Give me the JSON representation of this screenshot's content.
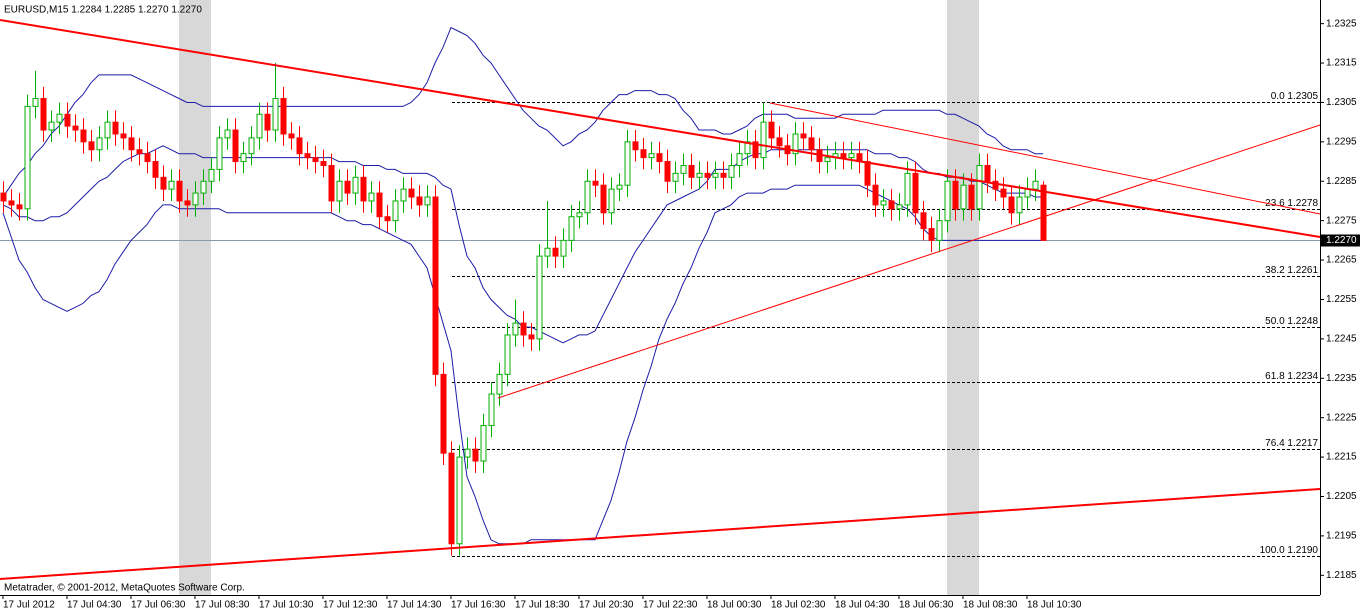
{
  "chart_data": {
    "type": "candlestick",
    "header": "EURUSD,M15 1.2284 1.2285 1.2270 1.2270",
    "footer": "Metatrader, © 2001-2012, MetaQuotes Software Corp.",
    "ylim": [
      1.218,
      1.2331
    ],
    "yticks": [
      1.2325,
      1.2315,
      1.2305,
      1.2295,
      1.2285,
      1.2275,
      1.2265,
      1.2255,
      1.2245,
      1.2235,
      1.2225,
      1.2215,
      1.2205,
      1.2195,
      1.2185
    ],
    "up_color": "#00b000",
    "down_color": "#ff0000",
    "categories": [
      "17 Jul 2012",
      null,
      null,
      null,
      null,
      null,
      null,
      null,
      "17 Jul 04:30",
      null,
      null,
      null,
      null,
      null,
      null,
      null,
      "17 Jul 06:30",
      null,
      null,
      null,
      null,
      null,
      null,
      null,
      "17 Jul 08:30",
      null,
      null,
      null,
      null,
      null,
      null,
      null,
      "17 Jul 10:30",
      null,
      null,
      null,
      null,
      null,
      null,
      null,
      "17 Jul 12:30",
      null,
      null,
      null,
      null,
      null,
      null,
      null,
      "17 Jul 14:30",
      null,
      null,
      null,
      null,
      null,
      null,
      null,
      "17 Jul 16:30",
      null,
      null,
      null,
      null,
      null,
      null,
      null,
      "17 Jul 18:30",
      null,
      null,
      null,
      null,
      null,
      null,
      null,
      "17 Jul 20:30",
      null,
      null,
      null,
      null,
      null,
      null,
      null,
      "17 Jul 22:30",
      null,
      null,
      null,
      null,
      null,
      null,
      null,
      "18 Jul 00:30",
      null,
      null,
      null,
      null,
      null,
      null,
      null,
      "18 Jul 02:30",
      null,
      null,
      null,
      null,
      null,
      null,
      null,
      "18 Jul 04:30",
      null,
      null,
      null,
      null,
      null,
      null,
      null,
      "18 Jul 06:30",
      null,
      null,
      null,
      null,
      null,
      null,
      null,
      "18 Jul 08:30",
      null,
      null,
      null,
      null,
      null,
      null,
      null,
      "18 Jul 10:30",
      null,
      null
    ],
    "open": [
      1.2282,
      1.228,
      1.2279,
      1.2278,
      1.2304,
      1.2306,
      1.2298,
      1.23,
      1.2302,
      1.2299,
      1.2298,
      1.2295,
      1.2293,
      1.2296,
      1.23,
      1.2297,
      1.2296,
      1.2293,
      1.2292,
      1.229,
      1.2286,
      1.2283,
      1.2285,
      1.228,
      1.2279,
      1.2282,
      1.2285,
      1.2288,
      1.2296,
      1.2298,
      1.229,
      1.2292,
      1.2296,
      1.2302,
      1.2298,
      1.2306,
      1.2297,
      1.2296,
      1.2292,
      1.2291,
      1.229,
      1.2289,
      1.228,
      1.2285,
      1.2282,
      1.2286,
      1.228,
      1.2282,
      1.2276,
      1.2275,
      1.228,
      1.2283,
      1.2281,
      1.2279,
      1.2281,
      1.2236,
      1.2216,
      1.2193,
      1.2215,
      1.2217,
      1.2214,
      1.2223,
      1.2231,
      1.2236,
      1.2246,
      1.2249,
      1.2246,
      1.2245,
      1.2266,
      1.2268,
      1.2266,
      1.227,
      1.2276,
      1.2277,
      1.2285,
      1.2284,
      1.2277,
      1.2283,
      1.2284,
      1.2295,
      1.2293,
      1.2291,
      1.2292,
      1.229,
      1.2285,
      1.2287,
      1.2289,
      1.2286,
      1.2287,
      1.2286,
      1.2287,
      1.2286,
      1.2289,
      1.2292,
      1.2295,
      1.2291,
      1.23,
      1.2296,
      1.2294,
      1.2292,
      1.2297,
      1.2296,
      1.2293,
      1.229,
      1.2291,
      1.2292,
      1.2291,
      1.2292,
      1.229,
      1.2284,
      1.2279,
      1.228,
      1.2278,
      1.2279,
      1.2287,
      1.2277,
      1.2273,
      1.227,
      1.2275,
      1.2285,
      1.2278,
      1.2284,
      1.2278,
      1.2289,
      1.2285,
      1.2283,
      1.2281,
      1.2277,
      1.2281,
      1.2283,
      1.2284
    ],
    "high": [
      1.2285,
      1.2283,
      1.2282,
      1.2307,
      1.2313,
      1.2309,
      1.2303,
      1.2305,
      1.2305,
      1.2302,
      1.2301,
      1.2298,
      1.2299,
      1.2303,
      1.2303,
      1.23,
      1.2299,
      1.2296,
      1.2295,
      1.2293,
      1.2289,
      1.2288,
      1.2288,
      1.2283,
      1.2285,
      1.2288,
      1.2291,
      1.2299,
      1.2301,
      1.2301,
      1.2295,
      1.2299,
      1.2305,
      1.2305,
      1.2315,
      1.2309,
      1.23,
      1.2299,
      1.2295,
      1.2294,
      1.2293,
      1.2292,
      1.2288,
      1.2288,
      1.2289,
      1.2289,
      1.2285,
      1.2285,
      1.2279,
      1.2283,
      1.2286,
      1.2286,
      1.2284,
      1.2284,
      1.2284,
      1.2239,
      1.2219,
      1.2218,
      1.222,
      1.222,
      1.2226,
      1.2234,
      1.2239,
      1.2249,
      1.2255,
      1.2252,
      1.2249,
      1.2269,
      1.228,
      1.2271,
      1.2273,
      1.2279,
      1.228,
      1.2288,
      1.2288,
      1.2287,
      1.2286,
      1.2287,
      1.2298,
      1.2298,
      1.2296,
      1.2295,
      1.2295,
      1.2293,
      1.229,
      1.2292,
      1.2292,
      1.229,
      1.229,
      1.229,
      1.229,
      1.2292,
      1.2295,
      1.2298,
      1.2298,
      1.2305,
      1.2303,
      1.2299,
      1.2297,
      1.23,
      1.23,
      1.2299,
      1.2296,
      1.2294,
      1.2295,
      1.2295,
      1.2295,
      1.2295,
      1.2293,
      1.2287,
      1.2283,
      1.2283,
      1.2282,
      1.229,
      1.229,
      1.228,
      1.2276,
      1.2278,
      1.2288,
      1.2288,
      1.2287,
      1.2287,
      1.2292,
      1.2292,
      1.2288,
      1.2286,
      1.2284,
      1.2284,
      1.2286,
      1.2288,
      1.2285
    ],
    "low": [
      1.2277,
      1.2276,
      1.2275,
      1.2275,
      1.2301,
      1.2295,
      1.2295,
      1.2297,
      1.2296,
      1.2295,
      1.2292,
      1.229,
      1.229,
      1.2293,
      1.2294,
      1.2293,
      1.229,
      1.2289,
      1.2287,
      1.2283,
      1.228,
      1.228,
      1.2277,
      1.2276,
      1.2276,
      1.2279,
      1.2282,
      1.2285,
      1.2293,
      1.2287,
      1.2287,
      1.2289,
      1.2293,
      1.2295,
      1.2295,
      1.2294,
      1.2293,
      1.2289,
      1.2288,
      1.2287,
      1.2286,
      1.2277,
      1.2277,
      1.2279,
      1.2279,
      1.2277,
      1.2277,
      1.2273,
      1.2272,
      1.2272,
      1.2277,
      1.2278,
      1.2276,
      1.2276,
      1.2233,
      1.2213,
      1.219,
      1.219,
      1.2212,
      1.2211,
      1.2211,
      1.222,
      1.2228,
      1.2233,
      1.2243,
      1.2243,
      1.2242,
      1.2242,
      1.2263,
      1.2263,
      1.2263,
      1.2267,
      1.2273,
      1.2274,
      1.2281,
      1.2274,
      1.2274,
      1.228,
      1.2281,
      1.229,
      1.2288,
      1.2288,
      1.2287,
      1.2282,
      1.2282,
      1.2284,
      1.2283,
      1.2283,
      1.2283,
      1.2283,
      1.2283,
      1.2283,
      1.2286,
      1.2289,
      1.2288,
      1.2288,
      1.2293,
      1.2291,
      1.2289,
      1.2289,
      1.2293,
      1.229,
      1.2287,
      1.2287,
      1.2288,
      1.2288,
      1.2288,
      1.2287,
      1.2281,
      1.2276,
      1.2276,
      1.2275,
      1.2275,
      1.2276,
      1.2274,
      1.227,
      1.2267,
      1.2267,
      1.2272,
      1.2275,
      1.2275,
      1.2275,
      1.2275,
      1.2282,
      1.228,
      1.2278,
      1.2274,
      1.2274,
      1.2278,
      1.228,
      1.227
    ],
    "close": [
      1.228,
      1.2279,
      1.2278,
      1.2304,
      1.2306,
      1.2298,
      1.23,
      1.2302,
      1.2299,
      1.2298,
      1.2295,
      1.2293,
      1.2296,
      1.23,
      1.2297,
      1.2296,
      1.2293,
      1.2292,
      1.229,
      1.2286,
      1.2283,
      1.2285,
      1.228,
      1.2279,
      1.2282,
      1.2285,
      1.2288,
      1.2296,
      1.2298,
      1.229,
      1.2292,
      1.2296,
      1.2302,
      1.2298,
      1.2306,
      1.2297,
      1.2296,
      1.2292,
      1.2291,
      1.229,
      1.2289,
      1.228,
      1.2285,
      1.2282,
      1.2286,
      1.228,
      1.2282,
      1.2276,
      1.2275,
      1.228,
      1.2283,
      1.2281,
      1.2279,
      1.2281,
      1.2236,
      1.2216,
      1.2193,
      1.2215,
      1.2217,
      1.2214,
      1.2223,
      1.2231,
      1.2236,
      1.2246,
      1.2249,
      1.2246,
      1.2245,
      1.2266,
      1.2268,
      1.2266,
      1.227,
      1.2276,
      1.2277,
      1.2285,
      1.2284,
      1.2277,
      1.2283,
      1.2284,
      1.2295,
      1.2293,
      1.2291,
      1.2292,
      1.229,
      1.2285,
      1.2287,
      1.2289,
      1.2286,
      1.2287,
      1.2286,
      1.2287,
      1.2286,
      1.2289,
      1.2292,
      1.2295,
      1.2291,
      1.23,
      1.2296,
      1.2294,
      1.2292,
      1.2297,
      1.2296,
      1.2293,
      1.229,
      1.2291,
      1.2292,
      1.2291,
      1.2292,
      1.229,
      1.2284,
      1.2279,
      1.228,
      1.2278,
      1.2279,
      1.2287,
      1.2277,
      1.2273,
      1.227,
      1.2275,
      1.2285,
      1.2278,
      1.2284,
      1.2278,
      1.2289,
      1.2285,
      1.2283,
      1.2281,
      1.2277,
      1.2281,
      1.2283,
      1.2285,
      1.227
    ],
    "bands": {
      "color": "#1c1ca8",
      "upper": [
        1.2281,
        1.2284,
        1.2287,
        1.2289,
        1.2292,
        1.2294,
        1.2297,
        1.2299,
        1.2302,
        1.2305,
        1.2307,
        1.231,
        1.2312,
        1.2312,
        1.2312,
        1.2312,
        1.2312,
        1.2311,
        1.231,
        1.2309,
        1.2308,
        1.2307,
        1.2306,
        1.2305,
        1.2305,
        1.2304,
        1.2304,
        1.2304,
        1.2304,
        1.2304,
        1.2304,
        1.2304,
        1.2304,
        1.2304,
        1.2304,
        1.2304,
        1.2304,
        1.2304,
        1.2304,
        1.2304,
        1.2304,
        1.2304,
        1.2304,
        1.2304,
        1.2304,
        1.2304,
        1.2304,
        1.2304,
        1.2304,
        1.2304,
        1.2304,
        1.2305,
        1.2307,
        1.231,
        1.2315,
        1.2319,
        1.2324,
        1.2323,
        1.2322,
        1.232,
        1.2317,
        1.2315,
        1.2312,
        1.2309,
        1.2306,
        1.2303,
        1.2301,
        1.2299,
        1.2298,
        1.2296,
        1.2294,
        1.2295,
        1.2297,
        1.2298,
        1.23,
        1.2303,
        1.2305,
        1.2307,
        1.2307,
        1.2308,
        1.2308,
        1.2308,
        1.2307,
        1.2307,
        1.2306,
        1.2303,
        1.2301,
        1.2298,
        1.2298,
        1.2298,
        1.2297,
        1.2297,
        1.2298,
        1.2299,
        1.2301,
        1.2302,
        1.2302,
        1.2302,
        1.2302,
        1.2301,
        1.2301,
        1.2301,
        1.2301,
        1.2301,
        1.2301,
        1.2302,
        1.2302,
        1.2302,
        1.2302,
        1.2302,
        1.2303,
        1.2303,
        1.2303,
        1.2303,
        1.2303,
        1.2303,
        1.2303,
        1.2303,
        1.2302,
        1.2302,
        1.2301,
        1.23,
        1.2299,
        1.2297,
        1.2296,
        1.2294,
        1.2293,
        1.2293,
        1.2293,
        1.2292,
        1.2292
      ],
      "middle": [
        1.2279,
        1.2278,
        1.2276,
        1.2276,
        1.2275,
        1.2275,
        1.2276,
        1.2276,
        1.2277,
        1.2279,
        1.2281,
        1.2283,
        1.2285,
        1.2286,
        1.2288,
        1.229,
        1.2291,
        1.2292,
        1.2292,
        1.2293,
        1.2294,
        1.2293,
        1.2292,
        1.2292,
        1.2292,
        1.2291,
        1.2291,
        1.2291,
        1.2291,
        1.2291,
        1.2291,
        1.2291,
        1.2291,
        1.2291,
        1.2291,
        1.2291,
        1.2291,
        1.2291,
        1.2291,
        1.2291,
        1.2291,
        1.2291,
        1.229,
        1.229,
        1.229,
        1.2289,
        1.2289,
        1.2289,
        1.2288,
        1.2288,
        1.2287,
        1.2287,
        1.2287,
        1.2287,
        1.2286,
        1.2284,
        1.2283,
        1.2274,
        1.2266,
        1.2263,
        1.2258,
        1.2255,
        1.2253,
        1.2251,
        1.225,
        1.2248,
        1.2248,
        1.2247,
        1.2246,
        1.2245,
        1.2244,
        1.2245,
        1.2246,
        1.2246,
        1.2247,
        1.2251,
        1.2255,
        1.2259,
        1.2263,
        1.2267,
        1.227,
        1.2273,
        1.2276,
        1.2279,
        1.228,
        1.2281,
        1.2282,
        1.2283,
        1.2285,
        1.2288,
        1.2288,
        1.2288,
        1.229,
        1.2291,
        1.2292,
        1.2292,
        1.2293,
        1.2293,
        1.2293,
        1.2293,
        1.2293,
        1.2293,
        1.2293,
        1.2293,
        1.2293,
        1.2293,
        1.2293,
        1.2293,
        1.2293,
        1.2292,
        1.2292,
        1.2292,
        1.2291,
        1.2291,
        1.229,
        1.2288,
        1.2287,
        1.2287,
        1.2286,
        1.2286,
        1.2286,
        1.2285,
        1.2285,
        1.2284,
        1.2283,
        1.2282,
        1.2282,
        1.2282,
        1.2282,
        1.2281,
        1.2281
      ],
      "lower": [
        1.2277,
        1.2271,
        1.2265,
        1.2262,
        1.2258,
        1.2255,
        1.2254,
        1.2253,
        1.2252,
        1.2253,
        1.2254,
        1.2256,
        1.2257,
        1.226,
        1.2264,
        1.2267,
        1.227,
        1.2272,
        1.2274,
        1.2277,
        1.2279,
        1.2279,
        1.2278,
        1.2278,
        1.2278,
        1.2278,
        1.2278,
        1.2278,
        1.2277,
        1.2277,
        1.2277,
        1.2277,
        1.2277,
        1.2277,
        1.2277,
        1.2277,
        1.2277,
        1.2277,
        1.2277,
        1.2277,
        1.2277,
        1.2277,
        1.2276,
        1.2275,
        1.2275,
        1.2274,
        1.2274,
        1.2273,
        1.2272,
        1.2271,
        1.227,
        1.2269,
        1.2266,
        1.2263,
        1.2256,
        1.2249,
        1.2242,
        1.2225,
        1.221,
        1.2205,
        1.2199,
        1.2194,
        1.2193,
        1.2193,
        1.2193,
        1.2193,
        1.2194,
        1.2194,
        1.2194,
        1.2194,
        1.2194,
        1.2194,
        1.2194,
        1.2194,
        1.2194,
        1.2199,
        1.2204,
        1.2211,
        1.2219,
        1.2225,
        1.2232,
        1.2238,
        1.2245,
        1.225,
        1.2254,
        1.2259,
        1.2263,
        1.2268,
        1.2272,
        1.2277,
        1.2278,
        1.2279,
        1.2281,
        1.2282,
        1.2282,
        1.2282,
        1.2283,
        1.2283,
        1.2283,
        1.2284,
        1.2284,
        1.2284,
        1.2284,
        1.2284,
        1.2284,
        1.2284,
        1.2284,
        1.2284,
        1.2283,
        1.2282,
        1.2281,
        1.228,
        1.2279,
        1.2278,
        1.2276,
        1.2273,
        1.2271,
        1.227,
        1.227,
        1.227,
        1.227,
        1.227,
        1.227,
        1.227,
        1.227,
        1.227,
        1.227,
        1.227,
        1.227,
        1.227,
        1.227
      ]
    },
    "fibonacci": [
      {
        "value": 1.2305,
        "label": "0.0 1.2305"
      },
      {
        "value": 1.2278,
        "label": "23.6 1.2278"
      },
      {
        "value": 1.2261,
        "label": "38.2 1.2261"
      },
      {
        "value": 1.2248,
        "label": "50.0 1.2248"
      },
      {
        "value": 1.2234,
        "label": "61.8 1.2234"
      },
      {
        "value": 1.2217,
        "label": "76.4 1.2217"
      },
      {
        "value": 1.219,
        "label": "100.0 1.2190"
      }
    ],
    "current_price": {
      "value": 1.227,
      "label": "1.2270"
    }
  }
}
